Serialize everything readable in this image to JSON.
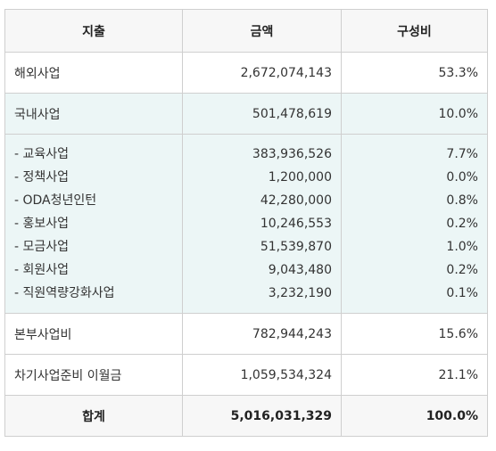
{
  "headers": [
    "지출",
    "금액",
    "구성비"
  ],
  "rows": [
    {
      "label": "해외사업",
      "amount": "2,672,074,143",
      "ratio": "53.3%"
    },
    {
      "label": "국내사업",
      "amount": "501,478,619",
      "ratio": "10.0%"
    }
  ],
  "sub_items": [
    {
      "label": "- 교육사업",
      "amount": "383,936,526",
      "ratio": "7.7%"
    },
    {
      "label": "- 정책사업",
      "amount": "1,200,000",
      "ratio": "0.0%"
    },
    {
      "label": "- ODA청년인턴",
      "amount": "42,280,000",
      "ratio": "0.8%"
    },
    {
      "label": "- 홍보사업",
      "amount": "10,246,553",
      "ratio": "0.2%"
    },
    {
      "label": "- 모금사업",
      "amount": "51,539,870",
      "ratio": "1.0%"
    },
    {
      "label": "- 회원사업",
      "amount": "9,043,480",
      "ratio": "0.2%"
    },
    {
      "label": "- 직원역량강화사업",
      "amount": "3,232,190",
      "ratio": "0.1%"
    }
  ],
  "after_rows": [
    {
      "label": "본부사업비",
      "amount": "782,944,243",
      "ratio": "15.6%"
    },
    {
      "label": "차기사업준비 이월금",
      "amount": "1,059,534,324",
      "ratio": "21.1%"
    }
  ],
  "total": {
    "label": "합계",
    "amount": "5,016,031,329",
    "ratio": "100.0%"
  }
}
